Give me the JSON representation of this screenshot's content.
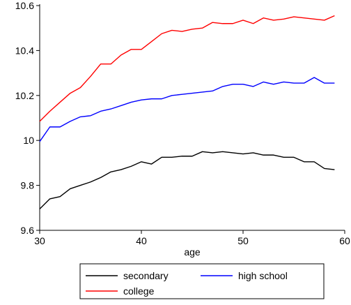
{
  "chart_data": {
    "type": "line",
    "title": "",
    "xlabel": "age",
    "ylabel": "",
    "xlim": [
      30,
      60
    ],
    "ylim": [
      9.6,
      10.6
    ],
    "x_ticks": [
      30,
      40,
      50,
      60
    ],
    "x_tick_labels": [
      "30",
      "40",
      "50",
      "60"
    ],
    "y_ticks": [
      9.6,
      9.8,
      10,
      10.2,
      10.4,
      10.6
    ],
    "y_tick_labels": [
      "9.6",
      "9.8",
      "10",
      "10.2",
      "10.4",
      "10.6"
    ],
    "grid": false,
    "legend_position": "bottom",
    "x": [
      30,
      31,
      32,
      33,
      34,
      35,
      36,
      37,
      38,
      39,
      40,
      41,
      42,
      43,
      44,
      45,
      46,
      47,
      48,
      49,
      50,
      51,
      52,
      53,
      54,
      55,
      56,
      57,
      58,
      59
    ],
    "series": [
      {
        "name": "secondary",
        "color": "#000000",
        "values": [
          9.695,
          9.74,
          9.75,
          9.785,
          9.8,
          9.815,
          9.835,
          9.86,
          9.87,
          9.885,
          9.905,
          9.895,
          9.925,
          9.925,
          9.93,
          9.93,
          9.95,
          9.945,
          9.95,
          9.945,
          9.94,
          9.945,
          9.935,
          9.935,
          9.925,
          9.925,
          9.905,
          9.905,
          9.875,
          9.87
        ]
      },
      {
        "name": "high school",
        "color": "#0000ff",
        "values": [
          9.995,
          10.06,
          10.06,
          10.085,
          10.105,
          10.11,
          10.13,
          10.14,
          10.155,
          10.17,
          10.18,
          10.185,
          10.185,
          10.2,
          10.205,
          10.21,
          10.215,
          10.22,
          10.24,
          10.25,
          10.25,
          10.24,
          10.26,
          10.25,
          10.26,
          10.255,
          10.255,
          10.28,
          10.255,
          10.255
        ]
      },
      {
        "name": "college",
        "color": "#ff0000",
        "values": [
          10.085,
          10.13,
          10.17,
          10.21,
          10.235,
          10.285,
          10.34,
          10.34,
          10.38,
          10.405,
          10.405,
          10.44,
          10.475,
          10.49,
          10.485,
          10.495,
          10.5,
          10.525,
          10.52,
          10.52,
          10.535,
          10.52,
          10.545,
          10.535,
          10.54,
          10.55,
          10.545,
          10.54,
          10.535,
          10.555
        ]
      }
    ]
  }
}
